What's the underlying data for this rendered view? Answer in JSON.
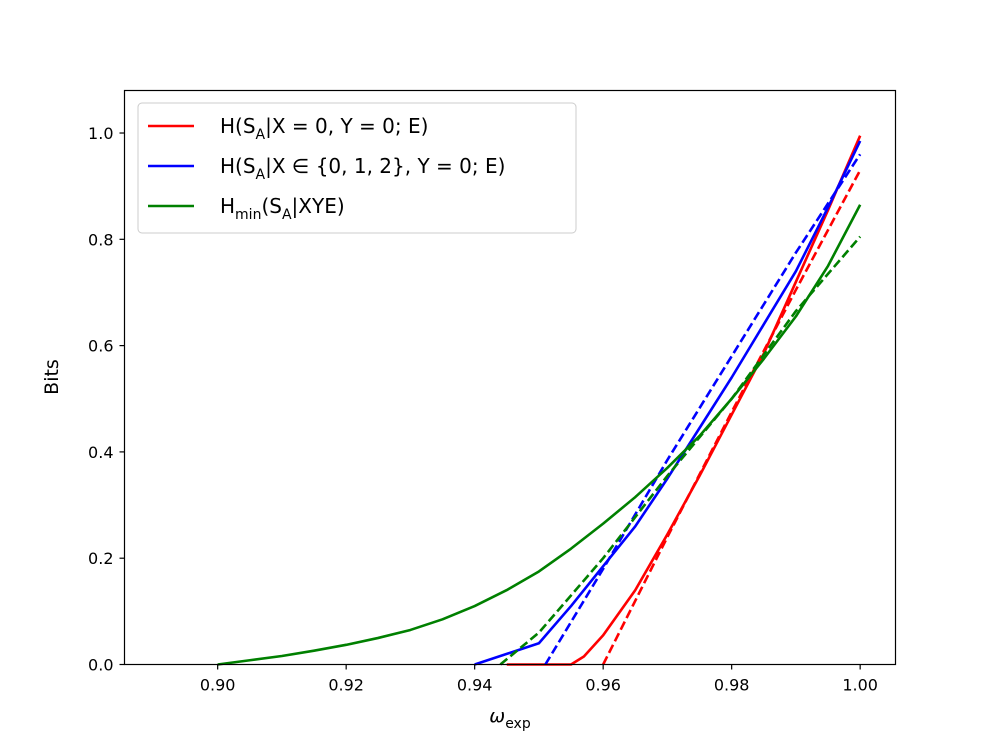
{
  "chart_data": {
    "type": "line",
    "xlabel": {
      "main": "ω",
      "sub": "exp"
    },
    "ylabel": "Bits",
    "xlim": [
      0.8855,
      1.0055
    ],
    "ylim": [
      0.0,
      1.08
    ],
    "xticks": [
      0.9,
      0.92,
      0.94,
      0.96,
      0.98,
      1.0
    ],
    "xtick_labels": [
      "0.90",
      "0.92",
      "0.94",
      "0.96",
      "0.98",
      "1.00"
    ],
    "yticks": [
      0.0,
      0.2,
      0.4,
      0.6,
      0.8,
      1.0
    ],
    "ytick_labels": [
      "0.0",
      "0.2",
      "0.4",
      "0.6",
      "0.8",
      "1.0"
    ],
    "grid": false,
    "legend_position": "top-left",
    "legend": [
      {
        "color": "#ff0000",
        "parts": [
          {
            "t": "H(S"
          },
          {
            "t": "A",
            "sub": true
          },
          {
            "t": "|X = 0, Y = 0; E)"
          }
        ]
      },
      {
        "color": "#0000ff",
        "parts": [
          {
            "t": "H(S"
          },
          {
            "t": "A",
            "sub": true
          },
          {
            "t": "|X ∈ {0, 1, 2}, Y = 0; E)"
          }
        ]
      },
      {
        "color": "#008000",
        "parts": [
          {
            "t": "H"
          },
          {
            "t": "min",
            "sub": true
          },
          {
            "t": "(S"
          },
          {
            "t": "A",
            "sub": true
          },
          {
            "t": "|XYE)"
          }
        ]
      }
    ],
    "series": [
      {
        "color": "#ff0000",
        "style": "solid",
        "x": [
          0.945,
          0.955,
          0.957,
          0.96,
          0.965,
          0.97,
          0.975,
          0.98,
          0.985,
          0.99,
          0.995,
          1.0
        ],
        "y": [
          0.0,
          0.0,
          0.015,
          0.055,
          0.14,
          0.245,
          0.355,
          0.47,
          0.585,
          0.72,
          0.855,
          0.995
        ]
      },
      {
        "color": "#ff0000",
        "style": "dashed",
        "x": [
          0.96,
          0.97,
          0.98,
          0.99,
          1.0
        ],
        "y": [
          0.0,
          0.24,
          0.475,
          0.705,
          0.93
        ]
      },
      {
        "color": "#0000ff",
        "style": "solid",
        "x": [
          0.94,
          0.95,
          0.955,
          0.96,
          0.965,
          0.97,
          0.975,
          0.98,
          0.985,
          0.99,
          0.995,
          1.0
        ],
        "y": [
          0.0,
          0.04,
          0.11,
          0.185,
          0.26,
          0.35,
          0.445,
          0.54,
          0.64,
          0.74,
          0.86,
          0.985
        ]
      },
      {
        "color": "#0000ff",
        "style": "dashed",
        "x": [
          0.951,
          0.96,
          0.97,
          0.98,
          0.99,
          1.0
        ],
        "y": [
          0.0,
          0.18,
          0.385,
          0.58,
          0.775,
          0.96
        ]
      },
      {
        "color": "#008000",
        "style": "solid",
        "x": [
          0.9,
          0.905,
          0.91,
          0.915,
          0.92,
          0.925,
          0.93,
          0.935,
          0.94,
          0.945,
          0.95,
          0.955,
          0.96,
          0.965,
          0.97,
          0.975,
          0.98,
          0.985,
          0.99,
          0.995,
          1.0
        ],
        "y": [
          0.0,
          0.008,
          0.016,
          0.026,
          0.037,
          0.05,
          0.065,
          0.085,
          0.11,
          0.14,
          0.175,
          0.218,
          0.265,
          0.315,
          0.37,
          0.43,
          0.5,
          0.575,
          0.655,
          0.75,
          0.865
        ]
      },
      {
        "color": "#008000",
        "style": "dashed",
        "x": [
          0.944,
          0.95,
          0.96,
          0.97,
          0.98,
          0.99,
          1.0
        ],
        "y": [
          0.0,
          0.06,
          0.2,
          0.355,
          0.5,
          0.665,
          0.805
        ]
      }
    ]
  }
}
